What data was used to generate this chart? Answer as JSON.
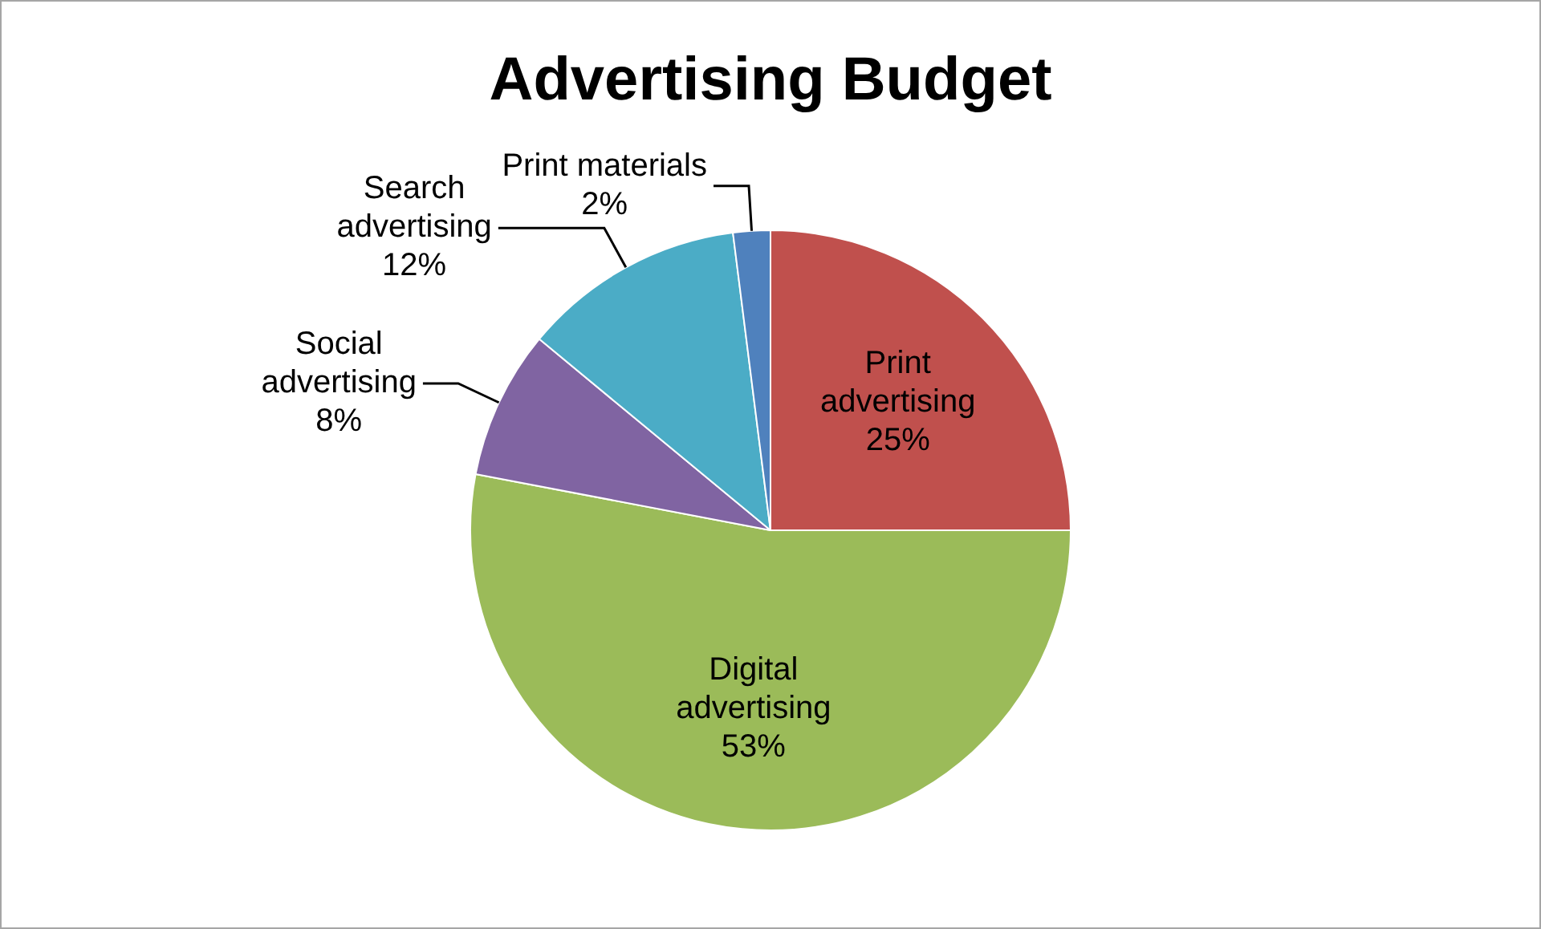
{
  "chart_data": {
    "type": "pie",
    "title": "Advertising Budget",
    "categories": [
      "Print advertising",
      "Digital advertising",
      "Social advertising",
      "Search advertising",
      "Print materials"
    ],
    "values": [
      25,
      53,
      8,
      12,
      2
    ],
    "colors": [
      "#c0504d",
      "#9bbb59",
      "#8064a2",
      "#4bacc6",
      "#4f81bd"
    ],
    "value_labels": [
      "25%",
      "53%",
      "8%",
      "12%",
      "2%"
    ],
    "legend": false
  }
}
